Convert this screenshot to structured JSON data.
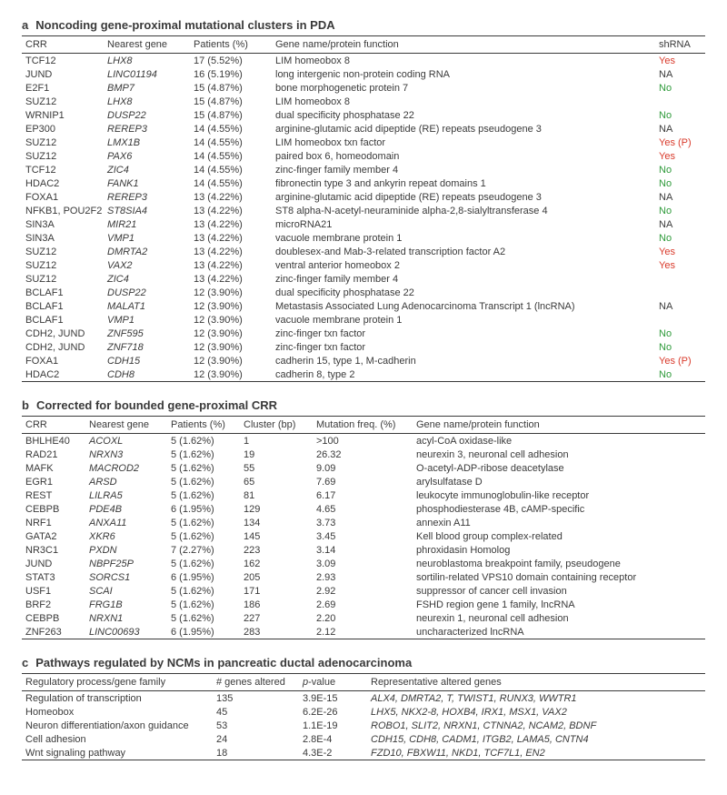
{
  "panel_a": {
    "letter": "a",
    "title": "Noncoding gene-proximal mutational clusters in PDA",
    "columns": [
      "CRR",
      "Nearest gene",
      "Patients (%)",
      "Gene name/protein function",
      "shRNA"
    ],
    "col_widths": [
      "90px",
      "95px",
      "90px",
      "auto",
      "55px"
    ],
    "rows": [
      [
        "TCF12",
        "LHX8",
        "17 (5.52%)",
        "LIM homeobox 8",
        "Yes",
        "yes"
      ],
      [
        "JUND",
        "LINC01194",
        "16 (5.19%)",
        "long intergenic non-protein coding RNA",
        "NA",
        "na"
      ],
      [
        "E2F1",
        "BMP7",
        "15 (4.87%)",
        "bone morphogenetic protein 7",
        "No",
        "no"
      ],
      [
        "SUZ12",
        "LHX8",
        "15 (4.87%)",
        "LIM homeobox 8",
        "",
        ""
      ],
      [
        "WRNIP1",
        "DUSP22",
        "15 (4.87%)",
        "dual specificity phosphatase 22",
        "No",
        "no"
      ],
      [
        "EP300",
        "REREP3",
        "14 (4.55%)",
        "arginine-glutamic acid dipeptide (RE) repeats pseudogene 3",
        "NA",
        "na"
      ],
      [
        "SUZ12",
        "LMX1B",
        "14 (4.55%)",
        "LIM homeobox txn factor",
        "Yes (P)",
        "yes"
      ],
      [
        "SUZ12",
        "PAX6",
        "14 (4.55%)",
        "paired box 6, homeodomain",
        "Yes",
        "yes"
      ],
      [
        "TCF12",
        "ZIC4",
        "14 (4.55%)",
        "zinc-finger family member 4",
        "No",
        "no"
      ],
      [
        "HDAC2",
        "FANK1",
        "14 (4.55%)",
        "fibronectin type 3 and ankyrin repeat domains 1",
        "No",
        "no"
      ],
      [
        "FOXA1",
        "REREP3",
        "13 (4.22%)",
        "arginine-glutamic acid dipeptide (RE) repeats pseudogene 3",
        "NA",
        "na"
      ],
      [
        "NFKB1, POU2F2",
        "ST8SIA4",
        "13 (4.22%)",
        "ST8 alpha-N-acetyl-neuraminide alpha-2,8-sialyltransferase 4",
        "No",
        "no"
      ],
      [
        "SIN3A",
        "MIR21",
        "13 (4.22%)",
        "microRNA21",
        "NA",
        "na"
      ],
      [
        "SIN3A",
        "VMP1",
        "13 (4.22%)",
        "vacuole membrane protein 1",
        "No",
        "no"
      ],
      [
        "SUZ12",
        "DMRTA2",
        "13 (4.22%)",
        "doublesex-and Mab-3-related transcription factor A2",
        "Yes",
        "yes"
      ],
      [
        "SUZ12",
        "VAX2",
        "13 (4.22%)",
        "ventral anterior homeobox 2",
        "Yes",
        "yes"
      ],
      [
        "SUZ12",
        "ZIC4",
        "13 (4.22%)",
        "zinc-finger family member 4",
        "",
        ""
      ],
      [
        "BCLAF1",
        "DUSP22",
        "12 (3.90%)",
        "dual specificity phosphatase 22",
        "",
        ""
      ],
      [
        "BCLAF1",
        "MALAT1",
        "12 (3.90%)",
        "Metastasis Associated Lung Adenocarcinoma Transcript 1 (lncRNA)",
        "NA",
        "na"
      ],
      [
        "BCLAF1",
        "VMP1",
        "12 (3.90%)",
        "vacuole membrane protein 1",
        "",
        ""
      ],
      [
        "CDH2, JUND",
        "ZNF595",
        "12 (3.90%)",
        "zinc-finger txn factor",
        "No",
        "no"
      ],
      [
        "CDH2, JUND",
        "ZNF718",
        "12 (3.90%)",
        "zinc-finger txn factor",
        "No",
        "no"
      ],
      [
        "FOXA1",
        "CDH15",
        "12 (3.90%)",
        "cadherin 15, type 1, M-cadherin",
        "Yes (P)",
        "yes"
      ],
      [
        "HDAC2",
        "CDH8",
        "12 (3.90%)",
        "cadherin 8, type 2",
        "No",
        "no"
      ]
    ]
  },
  "panel_b": {
    "letter": "b",
    "title": "Corrected for bounded gene-proximal CRR",
    "columns": [
      "CRR",
      "Nearest gene",
      "Patients (%)",
      "Cluster (bp)",
      "Mutation freq. (%)",
      "Gene name/protein function"
    ],
    "col_widths": [
      "70px",
      "90px",
      "80px",
      "80px",
      "110px",
      "auto"
    ],
    "rows": [
      [
        "BHLHE40",
        "ACOXL",
        "5 (1.62%)",
        "1",
        ">100",
        "acyl-CoA oxidase-like"
      ],
      [
        "RAD21",
        "NRXN3",
        "5 (1.62%)",
        "19",
        "26.32",
        "neurexin 3, neuronal cell adhesion"
      ],
      [
        "MAFK",
        "MACROD2",
        "5 (1.62%)",
        "55",
        "9.09",
        "O-acetyl-ADP-ribose deacetylase"
      ],
      [
        "EGR1",
        "ARSD",
        "5 (1.62%)",
        "65",
        "7.69",
        "arylsulfatase D"
      ],
      [
        "REST",
        "LILRA5",
        "5 (1.62%)",
        "81",
        "6.17",
        "leukocyte immunoglobulin-like receptor"
      ],
      [
        "CEBPB",
        "PDE4B",
        "6 (1.95%)",
        "129",
        "4.65",
        "phosphodiesterase 4B, cAMP-specific"
      ],
      [
        "NRF1",
        "ANXA11",
        "5 (1.62%)",
        "134",
        "3.73",
        "annexin A11"
      ],
      [
        "GATA2",
        "XKR6",
        "5 (1.62%)",
        "145",
        "3.45",
        "Kell blood group complex-related"
      ],
      [
        "NR3C1",
        "PXDN",
        "7 (2.27%)",
        "223",
        "3.14",
        "phroxidasin Homolog"
      ],
      [
        "JUND",
        "NBPF25P",
        "5 (1.62%)",
        "162",
        "3.09",
        "neuroblastoma breakpoint family, pseudogene"
      ],
      [
        "STAT3",
        "SORCS1",
        "6 (1.95%)",
        "205",
        "2.93",
        "sortilin-related VPS10 domain containing receptor"
      ],
      [
        "USF1",
        "SCAI",
        "5 (1.62%)",
        "171",
        "2.92",
        "suppressor of cancer cell invasion"
      ],
      [
        "BRF2",
        "FRG1B",
        "5 (1.62%)",
        "186",
        "2.69",
        "FSHD region gene 1 family, lncRNA"
      ],
      [
        "CEBPB",
        "NRXN1",
        "5 (1.62%)",
        "227",
        "2.20",
        "neurexin 1, neuronal cell adhesion"
      ],
      [
        "ZNF263",
        "LINC00693",
        "6 (1.95%)",
        "283",
        "2.12",
        "uncharacterized lncRNA"
      ]
    ]
  },
  "panel_c": {
    "letter": "c",
    "title": "Pathways regulated by NCMs in pancreatic ductal adenocarcinoma",
    "columns": [
      "Regulatory process/gene family",
      "# genes altered",
      "p-value",
      "Representative altered genes"
    ],
    "col_widths": [
      "210px",
      "95px",
      "75px",
      "auto"
    ],
    "rows": [
      [
        "Regulation of transcription",
        "135",
        "3.9E-15",
        "ALX4, DMRTA2, T, TWIST1, RUNX3, WWTR1"
      ],
      [
        "Homeobox",
        "45",
        "6.2E-26",
        "LHX5, NKX2-8, HOXB4, IRX1, MSX1, VAX2"
      ],
      [
        "Neuron differentiation/axon guidance",
        "53",
        "1.1E-19",
        "ROBO1, SLIT2, NRXN1, CTNNA2, NCAM2, BDNF"
      ],
      [
        "Cell adhesion",
        "24",
        "2.8E-4",
        "CDH15, CDH8, CADM1, ITGB2, LAMA5, CNTN4"
      ],
      [
        "Wnt signaling pathway",
        "18",
        "4.3E-2",
        "FZD10, FBXW11, NKD1, TCF7L1, EN2"
      ]
    ]
  },
  "colors": {
    "text": "#3a3a3a",
    "shrna_yes": "#d93a2b",
    "shrna_no": "#2e9a3a",
    "rule": "#3a3a3a",
    "background": "#ffffff"
  }
}
